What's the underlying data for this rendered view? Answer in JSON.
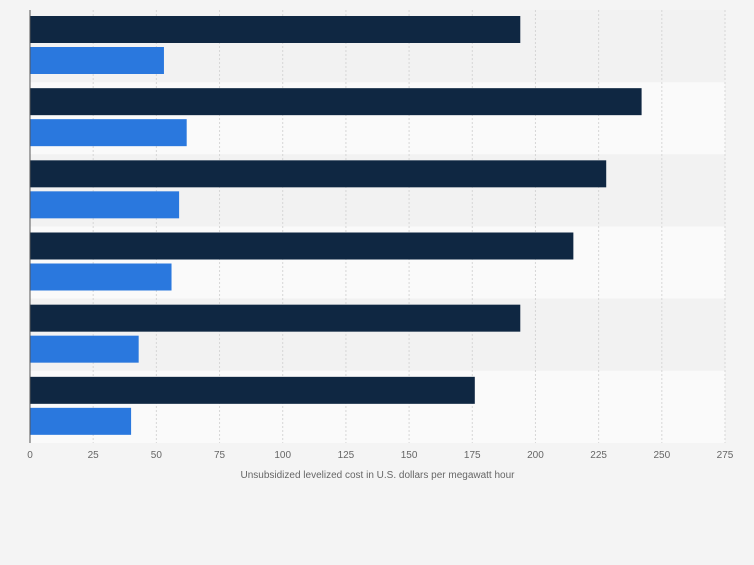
{
  "chart_data": {
    "type": "bar",
    "orientation": "horizontal",
    "categories": [
      "",
      "",
      "",
      "",
      "",
      ""
    ],
    "series": [
      {
        "color": "#0f2742",
        "values": [
          194,
          242,
          228,
          215,
          194,
          176
        ]
      },
      {
        "color": "#2a78de",
        "values": [
          53,
          62,
          59,
          56,
          43,
          40
        ]
      }
    ],
    "xlabel": "Unsubsidized levelized cost in U.S. dollars per megawatt hour",
    "ylabel": "",
    "xlim": [
      0,
      275
    ],
    "xticks": [
      "0",
      "25",
      "50",
      "75",
      "100",
      "125",
      "150",
      "175",
      "200",
      "225",
      "250",
      "275"
    ],
    "grid": true,
    "legend": "none"
  }
}
